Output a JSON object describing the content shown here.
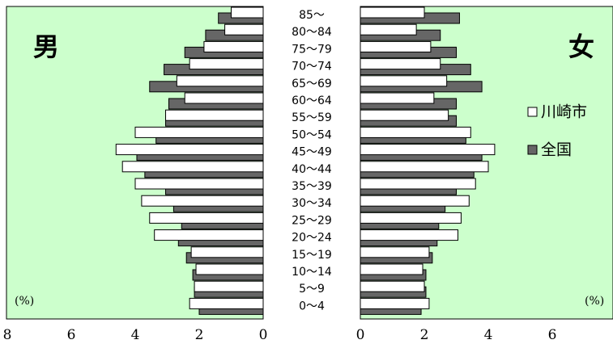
{
  "chart_data": {
    "type": "bar",
    "orientation": "horizontal",
    "subtype": "population-pyramid",
    "categories": [
      "85～",
      "80～84",
      "75～79",
      "70～74",
      "65～69",
      "60～64",
      "55～59",
      "50～54",
      "45～49",
      "40～44",
      "35～39",
      "30～34",
      "25～29",
      "20～24",
      "15～19",
      "10～14",
      "5～9",
      "0～4"
    ],
    "male_label": "男",
    "female_label": "女",
    "unit_label": "(%)",
    "series": [
      {
        "name": "川崎市",
        "color": "#ffffff",
        "male": [
          1.0,
          1.2,
          1.85,
          2.3,
          2.7,
          2.45,
          3.05,
          4.0,
          4.6,
          4.4,
          4.0,
          3.8,
          3.55,
          3.4,
          2.25,
          2.1,
          2.15,
          2.3
        ],
        "female": [
          2.0,
          1.75,
          2.2,
          2.5,
          2.7,
          2.3,
          2.75,
          3.45,
          4.2,
          4.0,
          3.6,
          3.4,
          3.15,
          3.05,
          2.15,
          1.95,
          2.0,
          2.15
        ]
      },
      {
        "name": "全国",
        "color": "#666666",
        "male": [
          1.4,
          1.8,
          2.45,
          3.1,
          3.55,
          2.95,
          3.05,
          3.35,
          3.95,
          3.7,
          3.05,
          2.8,
          2.55,
          2.65,
          2.4,
          2.2,
          2.15,
          2.0
        ],
        "female": [
          3.1,
          2.5,
          3.0,
          3.45,
          3.8,
          3.0,
          3.0,
          3.3,
          3.8,
          3.55,
          3.0,
          2.65,
          2.45,
          2.4,
          2.25,
          2.05,
          2.05,
          1.9
        ]
      }
    ],
    "male_ticks": [
      8,
      6,
      4,
      2,
      0
    ],
    "female_ticks": [
      0,
      2,
      4,
      6
    ],
    "xlim": [
      0,
      8
    ],
    "grid": false,
    "legend_position": "right"
  }
}
